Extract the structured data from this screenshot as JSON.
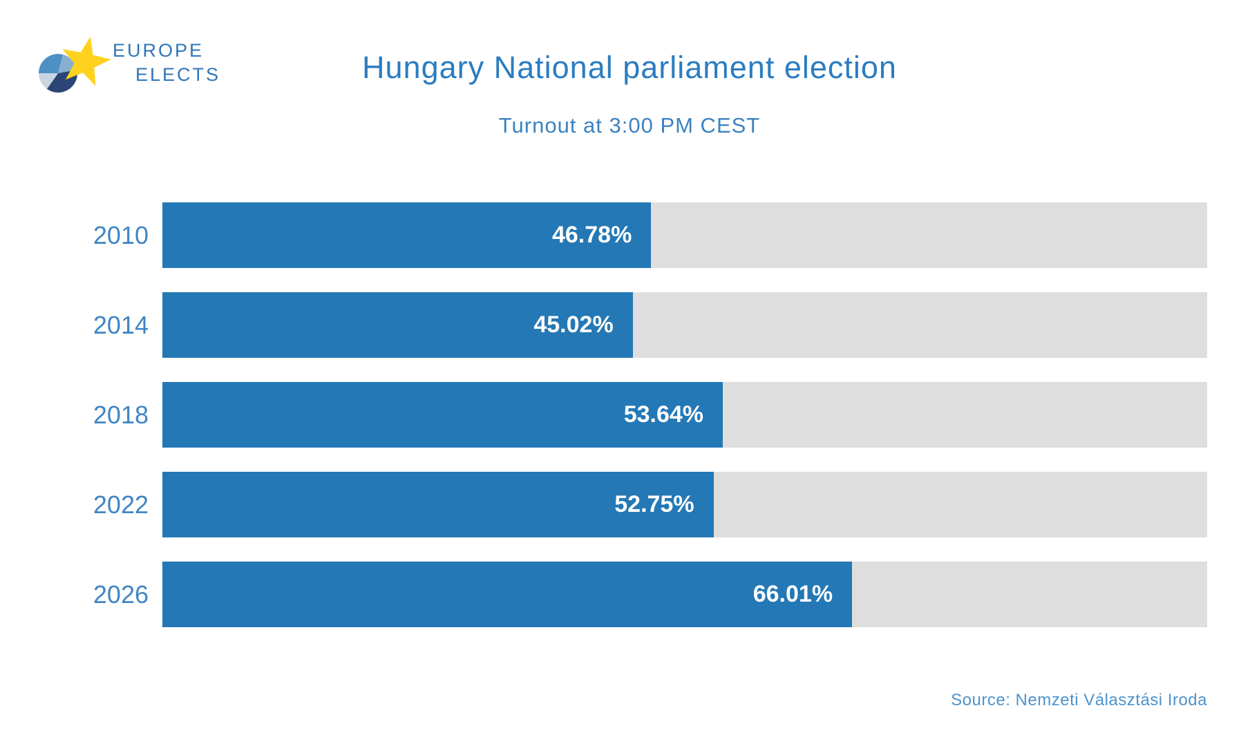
{
  "logo": {
    "wordmark_line1": "EUROPE",
    "wordmark_line2": "ELECTS",
    "pie_colors": {
      "steel_blue": "#4e8fc4",
      "pale_blue": "#88aece",
      "light_blue": "#c9d6e2",
      "navy": "#2b4577"
    },
    "star_color": "#ffd21e"
  },
  "header": {
    "title": "Hungary National parliament election",
    "subtitle": "Turnout at 3:00 PM CEST"
  },
  "footer": {
    "source_label": "Source: Nemzeti Választási Iroda"
  },
  "colors": {
    "bar_fill": "#2478b5",
    "bar_track": "#dedede",
    "title_text": "#2b7cc1",
    "year_text": "#3f85c5",
    "value_text": "#ffffff",
    "source_text": "#4d93cd"
  },
  "chart_data": {
    "type": "bar",
    "orientation": "horizontal",
    "categories": [
      "2010",
      "2014",
      "2018",
      "2022",
      "2026"
    ],
    "values": [
      46.78,
      45.02,
      53.64,
      52.75,
      66.01
    ],
    "value_labels": [
      "46.78%",
      "45.02%",
      "53.64%",
      "52.75%",
      "66.01%"
    ],
    "title": "Hungary National parliament election",
    "subtitle": "Turnout at 3:00 PM CEST",
    "xlabel": "",
    "ylabel": "",
    "xlim": [
      0,
      100
    ],
    "grid": false,
    "legend": false,
    "source": "Source: Nemzeti Választási Iroda"
  }
}
